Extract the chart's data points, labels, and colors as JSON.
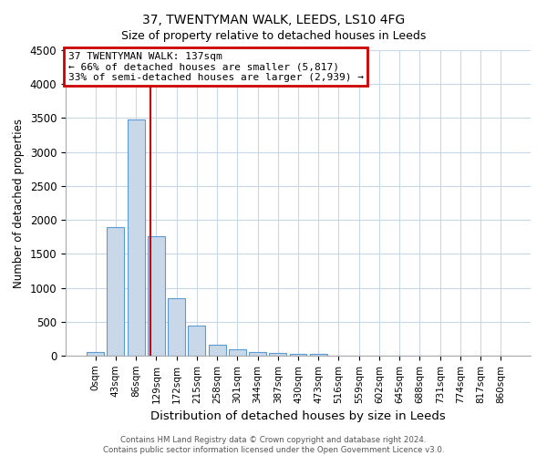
{
  "title": "37, TWENTYMAN WALK, LEEDS, LS10 4FG",
  "subtitle": "Size of property relative to detached houses in Leeds",
  "xlabel": "Distribution of detached houses by size in Leeds",
  "ylabel": "Number of detached properties",
  "bar_labels": [
    "0sqm",
    "43sqm",
    "86sqm",
    "129sqm",
    "172sqm",
    "215sqm",
    "258sqm",
    "301sqm",
    "344sqm",
    "387sqm",
    "430sqm",
    "473sqm",
    "516sqm",
    "559sqm",
    "602sqm",
    "645sqm",
    "688sqm",
    "731sqm",
    "774sqm",
    "817sqm",
    "860sqm"
  ],
  "bar_values": [
    50,
    1900,
    3480,
    1760,
    840,
    450,
    160,
    90,
    60,
    45,
    30,
    30,
    0,
    0,
    0,
    0,
    0,
    0,
    0,
    0,
    0
  ],
  "bar_color": "#c8d8e8",
  "bar_edge_color": "#5b9bd5",
  "vline_x": 2.72,
  "vline_color": "#cc0000",
  "annotation_text": "37 TWENTYMAN WALK: 137sqm\n← 66% of detached houses are smaller (5,817)\n33% of semi-detached houses are larger (2,939) →",
  "annotation_box_color": "#cc0000",
  "ylim": [
    0,
    4500
  ],
  "yticks": [
    0,
    500,
    1000,
    1500,
    2000,
    2500,
    3000,
    3500,
    4000,
    4500
  ],
  "footer": "Contains HM Land Registry data © Crown copyright and database right 2024.\nContains public sector information licensed under the Open Government Licence v3.0.",
  "bg_color": "#ffffff",
  "grid_color": "#c8d8e8"
}
